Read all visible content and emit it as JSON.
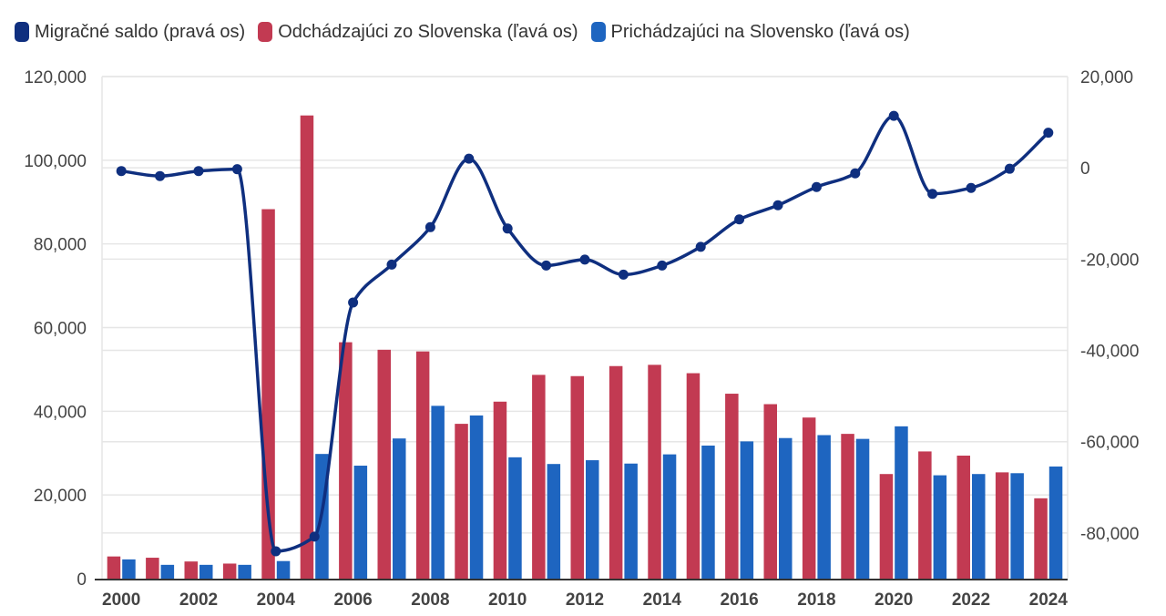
{
  "legend": [
    {
      "label": "Migračné saldo (pravá os)",
      "color": "#0f2f7f"
    },
    {
      "label": "Odchádzajúci zo Slovenska (ľavá os)",
      "color": "#c23a52"
    },
    {
      "label": "Prichádzajúci na Slovensko (ľavá os)",
      "color": "#1e65c0"
    }
  ],
  "chart_data": {
    "type": "bar",
    "x": [
      2000,
      2001,
      2002,
      2003,
      2004,
      2005,
      2006,
      2007,
      2008,
      2009,
      2010,
      2011,
      2012,
      2013,
      2014,
      2015,
      2016,
      2017,
      2018,
      2019,
      2020,
      2021,
      2022,
      2023,
      2024
    ],
    "x_tick_labels": [
      "2000",
      "2002",
      "2004",
      "2006",
      "2008",
      "2010",
      "2012",
      "2014",
      "2016",
      "2018",
      "2020",
      "2022",
      "2024"
    ],
    "left_axis": {
      "min": 0,
      "max": 120000,
      "ticks": [
        "0",
        "20,000",
        "40,000",
        "60,000",
        "80,000",
        "100,000",
        "120,000"
      ]
    },
    "right_axis": {
      "min": -90000,
      "max": 20000,
      "ticks": [
        "-80,000",
        "-60,000",
        "-40,000",
        "-20,000",
        "0",
        "20,000"
      ]
    },
    "grid": true,
    "legend_position": "top-left",
    "series": [
      {
        "name": "Odchádzajúci zo Slovenska (ľavá os)",
        "type": "bar",
        "axis": "left",
        "color": "#c23a52",
        "values": [
          5300,
          5000,
          4100,
          3600,
          88300,
          110700,
          56500,
          54700,
          54300,
          37000,
          42300,
          48700,
          48400,
          50800,
          51100,
          49100,
          44200,
          41700,
          38500,
          34600,
          25000,
          30400,
          29400,
          25400,
          19200
        ]
      },
      {
        "name": "Prichádzajúci na Slovensko (ľavá os)",
        "type": "bar",
        "axis": "left",
        "color": "#1e65c0",
        "values": [
          4600,
          3300,
          3300,
          3300,
          4200,
          29800,
          27000,
          33500,
          41300,
          39000,
          29000,
          27400,
          28300,
          27500,
          29700,
          31800,
          32800,
          33600,
          34300,
          33400,
          36400,
          24700,
          25000,
          25200,
          26800
        ]
      },
      {
        "name": "Migračné saldo (pravá os)",
        "type": "line",
        "axis": "right",
        "color": "#0f2f7f",
        "values": [
          -700,
          -1800,
          -700,
          -300,
          -84000,
          -80800,
          -29500,
          -21200,
          -13000,
          2000,
          -13300,
          -21400,
          -20100,
          -23400,
          -21400,
          -17300,
          -11300,
          -8200,
          -4200,
          -1200,
          11400,
          -5700,
          -4400,
          -200,
          7700
        ]
      }
    ]
  }
}
